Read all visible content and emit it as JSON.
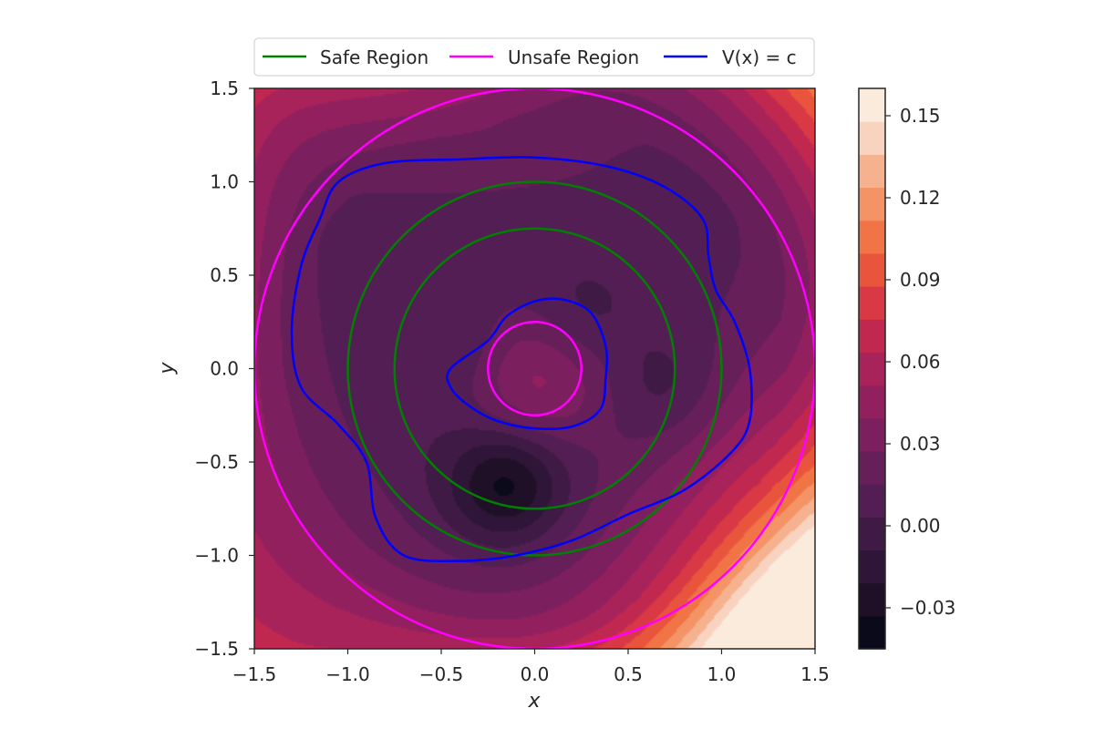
{
  "chart_data": {
    "type": "contour",
    "xlabel": "x",
    "ylabel": "y",
    "xlim": [
      -1.5,
      1.5
    ],
    "ylim": [
      -1.5,
      1.5
    ],
    "xticks": [
      "−1.5",
      "−1.0",
      "−0.5",
      "0.0",
      "0.5",
      "1.0",
      "1.5"
    ],
    "yticks": [
      "−1.5",
      "−1.0",
      "−0.5",
      "0.0",
      "0.5",
      "1.0",
      "1.5"
    ],
    "xtick_values": [
      -1.5,
      -1.0,
      -0.5,
      0.0,
      0.5,
      1.0,
      1.5
    ],
    "ytick_values": [
      -1.5,
      -1.0,
      -0.5,
      0.0,
      0.5,
      1.0,
      1.5
    ],
    "grid": false,
    "legend": {
      "placement": "top-center, above plot",
      "entries": [
        {
          "label": "Safe Region",
          "color": "#008000"
        },
        {
          "label": "Unsafe Region",
          "color": "#ff00ff"
        },
        {
          "label": "V(x) = c",
          "color": "#0000ff"
        }
      ]
    },
    "colorbar": {
      "range": [
        -0.045,
        0.16
      ],
      "tick_values": [
        -0.03,
        0.0,
        0.03,
        0.06,
        0.09,
        0.12,
        0.15
      ],
      "tick_labels": [
        "−0.03",
        "0.00",
        "0.03",
        "0.06",
        "0.09",
        "0.12",
        "0.15"
      ],
      "levels": 14,
      "colormap": "rocket",
      "colors": [
        "#0b0a1a",
        "#1f1027",
        "#2f1537",
        "#3f1a45",
        "#521e53",
        "#661f59",
        "#7c1f5e",
        "#93205e",
        "#a9235b",
        "#c0284f",
        "#d83944",
        "#e9543d",
        "#f07445",
        "#f49466",
        "#f6b18f",
        "#f8d3bf",
        "#faebdd"
      ]
    },
    "safe_region": {
      "type": "annulus",
      "inner_radius": 0.75,
      "outer_radius": 1.0
    },
    "unsafe_region": {
      "type": "circle_and_outside",
      "inner_radius": 0.25,
      "outer_radius": 1.5
    },
    "level_curves_vx_eq_c": {
      "inner": [
        [
          -0.45,
          0.0
        ],
        [
          -0.25,
          0.15
        ],
        [
          -0.15,
          0.28
        ],
        [
          0.0,
          0.36
        ],
        [
          0.15,
          0.37
        ],
        [
          0.3,
          0.3
        ],
        [
          0.38,
          0.12
        ],
        [
          0.38,
          -0.05
        ],
        [
          0.35,
          -0.22
        ],
        [
          0.2,
          -0.31
        ],
        [
          0.0,
          -0.32
        ],
        [
          -0.2,
          -0.28
        ],
        [
          -0.35,
          -0.2
        ],
        [
          -0.45,
          -0.1
        ]
      ],
      "outer": [
        [
          -1.05,
          1.0
        ],
        [
          -0.8,
          1.1
        ],
        [
          -0.4,
          1.12
        ],
        [
          0.0,
          1.13
        ],
        [
          0.4,
          1.08
        ],
        [
          0.7,
          0.97
        ],
        [
          0.9,
          0.8
        ],
        [
          0.93,
          0.6
        ],
        [
          0.97,
          0.42
        ],
        [
          1.07,
          0.25
        ],
        [
          1.15,
          0.0
        ],
        [
          1.15,
          -0.28
        ],
        [
          1.05,
          -0.45
        ],
        [
          0.8,
          -0.65
        ],
        [
          0.5,
          -0.78
        ],
        [
          0.2,
          -0.92
        ],
        [
          -0.1,
          -1.0
        ],
        [
          -0.4,
          -1.03
        ],
        [
          -0.7,
          -1.0
        ],
        [
          -0.85,
          -0.8
        ],
        [
          -0.9,
          -0.5
        ],
        [
          -1.05,
          -0.3
        ],
        [
          -1.25,
          -0.1
        ],
        [
          -1.3,
          0.2
        ],
        [
          -1.25,
          0.55
        ],
        [
          -1.15,
          0.8
        ]
      ]
    },
    "minima": [
      {
        "x": -0.15,
        "y": -0.62,
        "value": -0.045
      },
      {
        "x": 0.2,
        "y": 0.25,
        "value": -0.02
      },
      {
        "x": -0.3,
        "y": 0.1,
        "value": -0.015
      },
      {
        "x": 0.7,
        "y": -0.1,
        "value": -0.015
      }
    ],
    "center_value": 0.05,
    "field_model": "value grows toward the corners, strongest near (1.5, -1.5)"
  }
}
